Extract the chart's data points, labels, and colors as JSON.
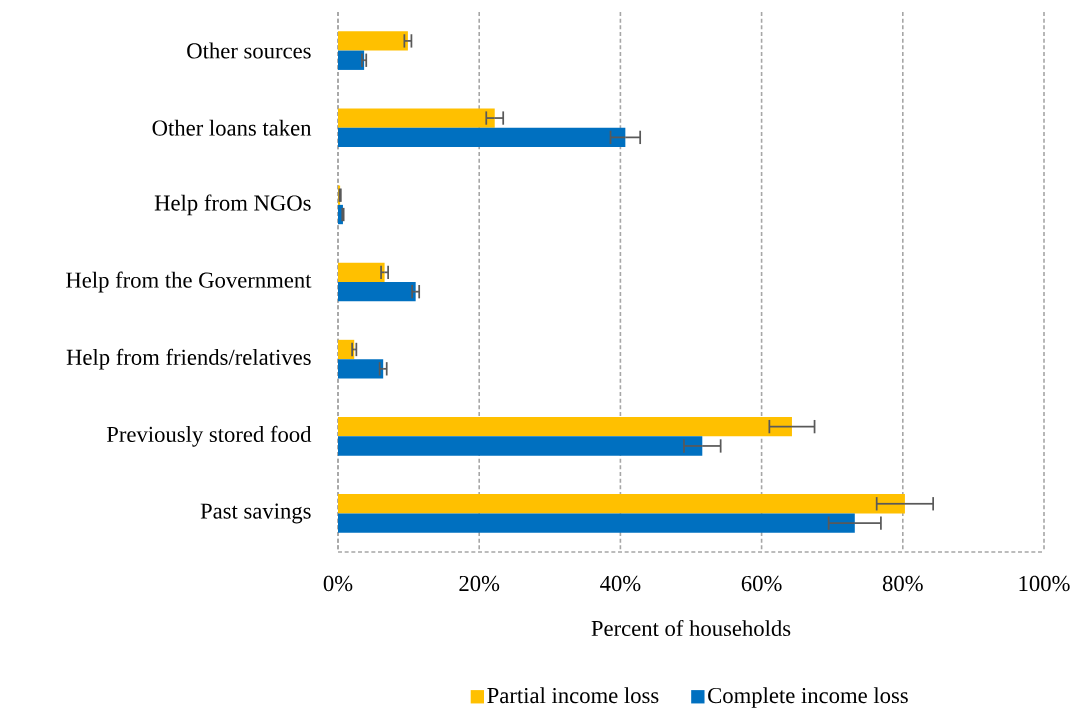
{
  "chart_data": {
    "type": "bar",
    "orientation": "horizontal",
    "xlabel": "Percent of households",
    "categories": [
      "Other sources",
      "Other loans taken",
      "Help from NGOs",
      "Help from the Government",
      "Help from friends/relatives",
      "Previously stored food",
      "Past savings"
    ],
    "series": [
      {
        "name": "Partial income loss",
        "color": "#ffc000",
        "values": [
          9.9,
          22.2,
          0.3,
          6.6,
          2.3,
          64.3,
          80.3
        ],
        "errors": [
          0.5,
          1.2,
          0.1,
          0.5,
          0.3,
          3.2,
          4.0
        ]
      },
      {
        "name": "Complete income loss",
        "color": "#0070c0",
        "values": [
          3.7,
          40.7,
          0.7,
          11.0,
          6.4,
          51.6,
          73.2
        ],
        "errors": [
          0.3,
          2.1,
          0.1,
          0.5,
          0.5,
          2.6,
          3.7
        ]
      }
    ],
    "xlim": [
      0,
      100
    ],
    "xticks": [
      {
        "value": 0,
        "label": "0%"
      },
      {
        "value": 20,
        "label": "20%"
      },
      {
        "value": 40,
        "label": "40%"
      },
      {
        "value": 60,
        "label": "60%"
      },
      {
        "value": 80,
        "label": "80%"
      },
      {
        "value": 100,
        "label": "100%"
      }
    ],
    "grid": "x",
    "legend": "bottom"
  }
}
